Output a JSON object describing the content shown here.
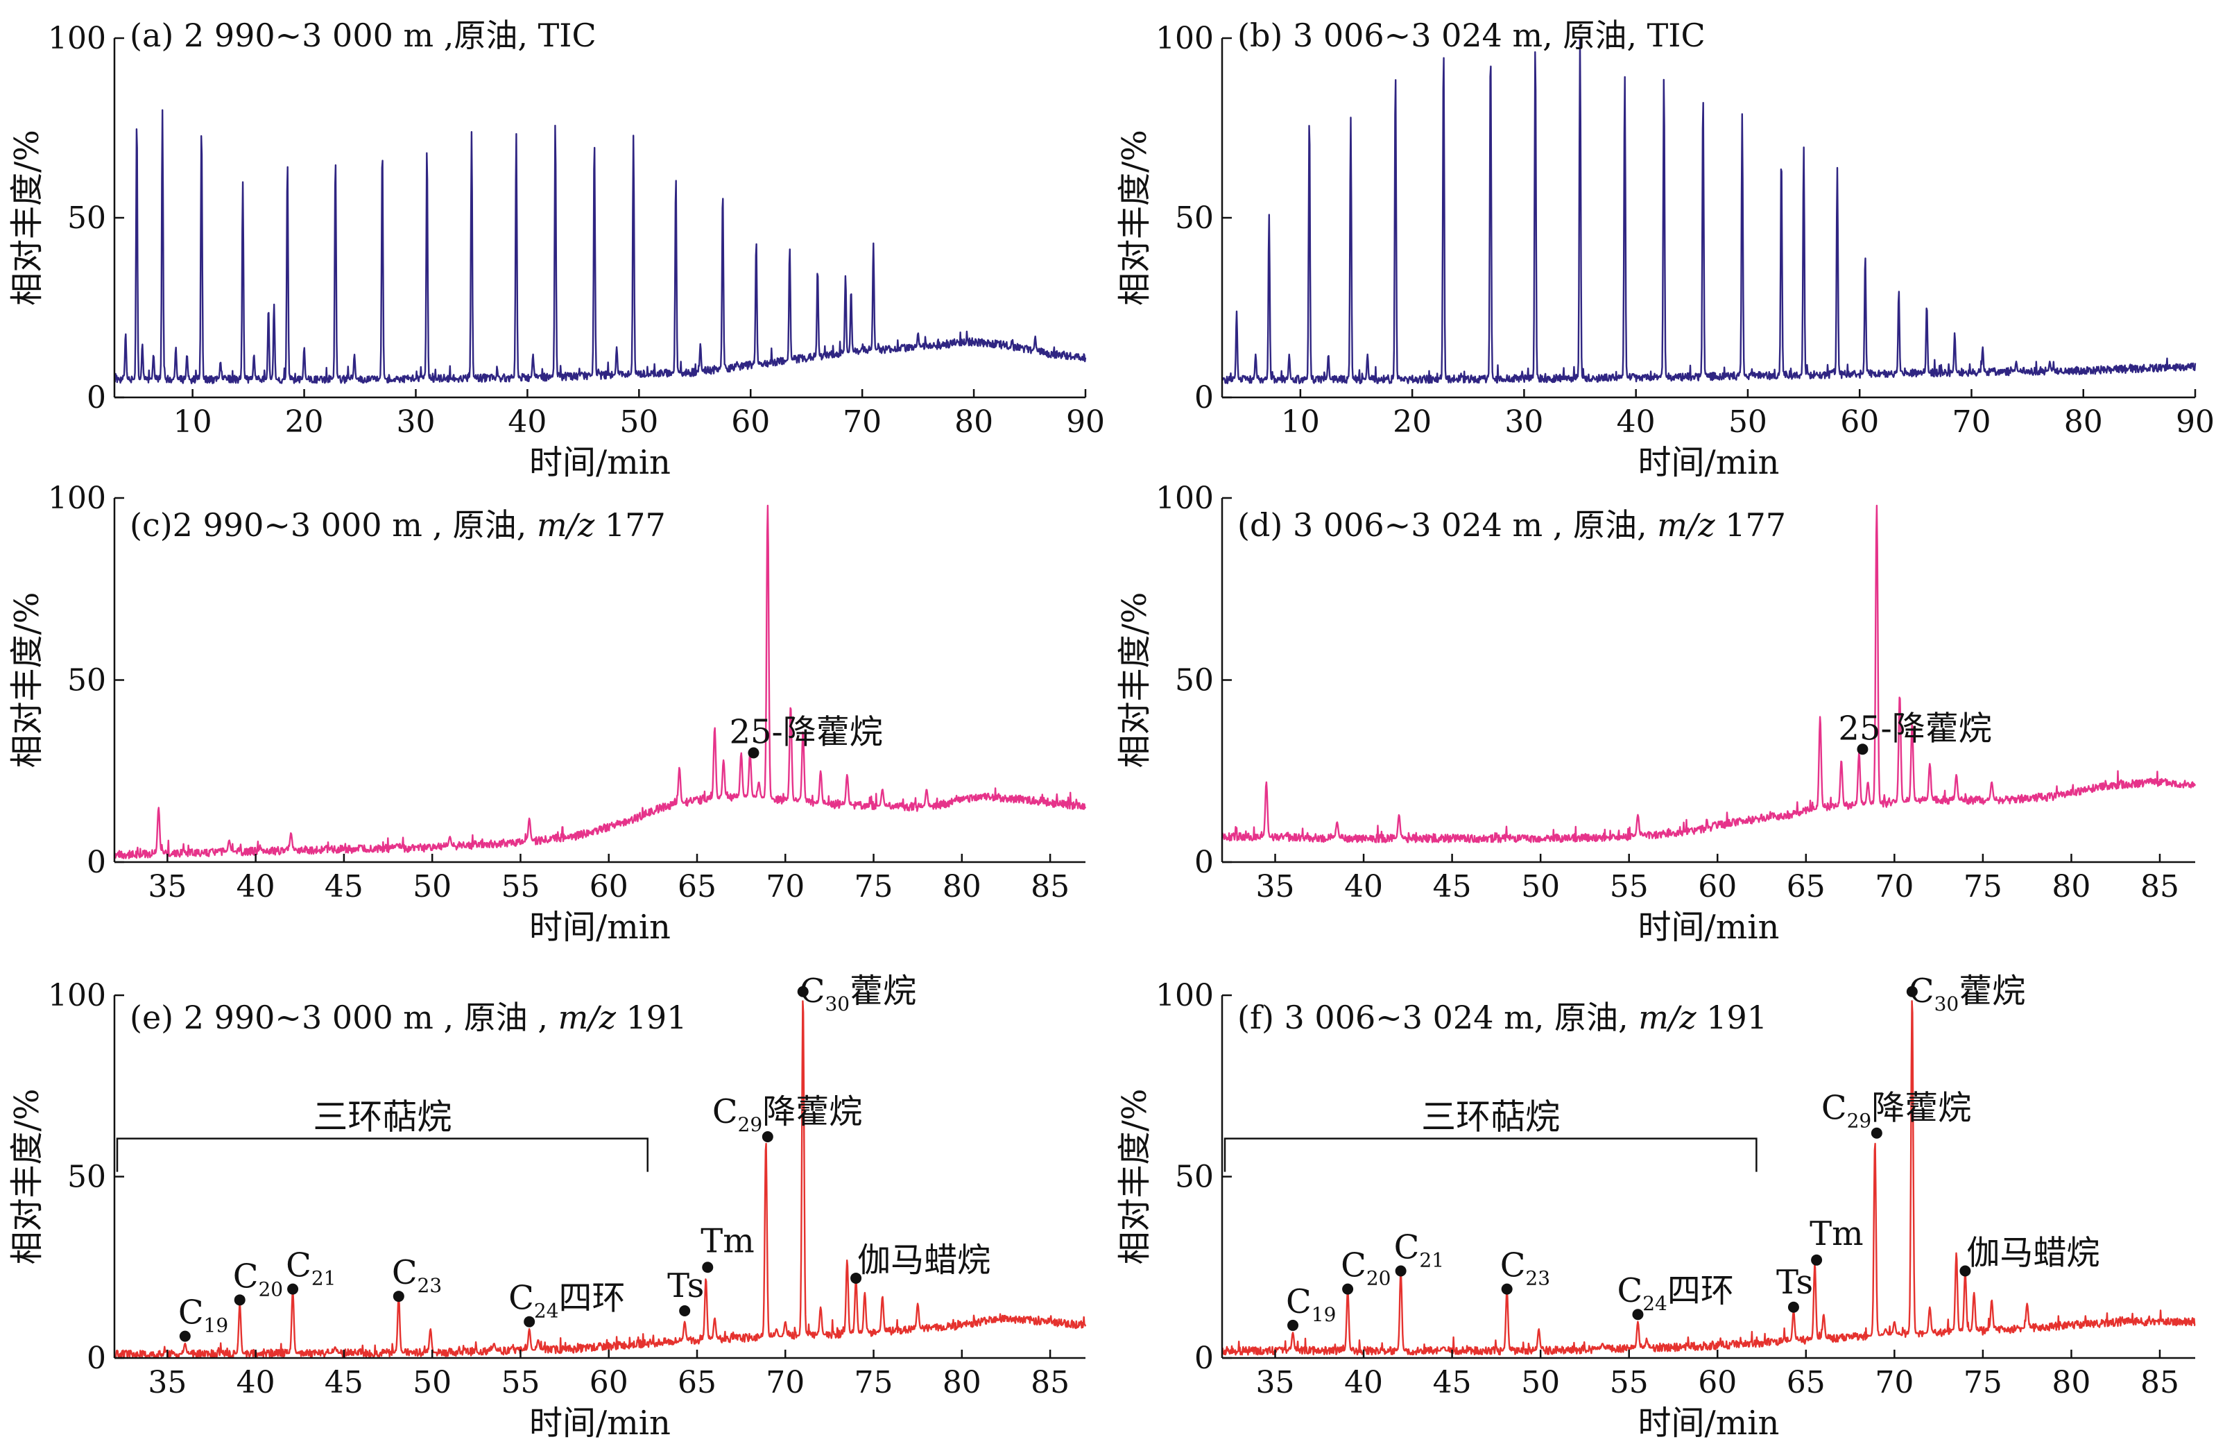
{
  "x_axis_label": "时间/min",
  "y_axis_label": "相对丰度/%",
  "chart_data": [
    {
      "id": "a",
      "type": "line",
      "color": "#2f2582",
      "title": "(a) 2 990~3 000 m ,原油, TIC",
      "xlabel": "时间/min",
      "ylabel": "相对丰度/%",
      "xlim": [
        3,
        90
      ],
      "ylim": [
        0,
        100
      ],
      "xticks": [
        10,
        20,
        30,
        40,
        50,
        60,
        70,
        80,
        90
      ],
      "yticks": [
        0,
        50,
        100
      ],
      "baseline": [
        [
          3,
          5
        ],
        [
          20,
          5
        ],
        [
          40,
          5.5
        ],
        [
          55,
          7
        ],
        [
          60,
          9
        ],
        [
          65,
          11
        ],
        [
          70,
          13
        ],
        [
          75,
          14
        ],
        [
          80,
          15.5
        ],
        [
          83,
          14.5
        ],
        [
          87,
          12
        ],
        [
          90,
          11
        ]
      ],
      "peaks": [
        [
          4.0,
          18
        ],
        [
          5.0,
          78
        ],
        [
          5.5,
          15
        ],
        [
          6.5,
          12
        ],
        [
          7.3,
          80
        ],
        [
          8.5,
          14
        ],
        [
          9.5,
          12
        ],
        [
          10.8,
          76
        ],
        [
          12.5,
          10
        ],
        [
          14.5,
          60
        ],
        [
          15.5,
          12
        ],
        [
          16.8,
          25
        ],
        [
          17.3,
          26
        ],
        [
          18.5,
          66
        ],
        [
          20.0,
          14
        ],
        [
          22.8,
          67
        ],
        [
          24.5,
          12
        ],
        [
          27.0,
          70
        ],
        [
          31.0,
          70
        ],
        [
          35.0,
          74
        ],
        [
          39.0,
          74
        ],
        [
          40.5,
          12
        ],
        [
          42.5,
          77
        ],
        [
          46.0,
          72
        ],
        [
          48.0,
          14
        ],
        [
          49.5,
          73
        ],
        [
          53.3,
          62
        ],
        [
          55.5,
          15
        ],
        [
          57.5,
          58
        ],
        [
          60.5,
          44
        ],
        [
          63.5,
          42
        ],
        [
          66.0,
          36
        ],
        [
          68.5,
          34
        ],
        [
          69.0,
          30
        ],
        [
          71.0,
          43
        ],
        [
          75.0,
          18
        ],
        [
          85.5,
          17
        ]
      ]
    },
    {
      "id": "b",
      "type": "line",
      "color": "#2f2582",
      "title": "(b) 3 006~3 024 m, 原油, TIC",
      "xlabel": "时间/min",
      "ylabel": "相对丰度/%",
      "xlim": [
        3,
        90
      ],
      "ylim": [
        0,
        100
      ],
      "xticks": [
        10,
        20,
        30,
        40,
        50,
        60,
        70,
        80,
        90
      ],
      "yticks": [
        0,
        50,
        100
      ],
      "baseline": [
        [
          3,
          5
        ],
        [
          20,
          5
        ],
        [
          40,
          5.5
        ],
        [
          60,
          6.5
        ],
        [
          70,
          7
        ],
        [
          80,
          7.5
        ],
        [
          90,
          8.5
        ]
      ],
      "peaks": [
        [
          4.3,
          24
        ],
        [
          6.0,
          12
        ],
        [
          7.2,
          51
        ],
        [
          9.0,
          12
        ],
        [
          10.8,
          79
        ],
        [
          12.5,
          12
        ],
        [
          14.5,
          78
        ],
        [
          16.0,
          12
        ],
        [
          18.5,
          91
        ],
        [
          22.8,
          98
        ],
        [
          27.0,
          98
        ],
        [
          31.0,
          99
        ],
        [
          35.0,
          100
        ],
        [
          39.0,
          90
        ],
        [
          42.5,
          90
        ],
        [
          46.0,
          85
        ],
        [
          49.5,
          79
        ],
        [
          53.0,
          68
        ],
        [
          55.0,
          70
        ],
        [
          58.0,
          64
        ],
        [
          60.5,
          40
        ],
        [
          63.5,
          30
        ],
        [
          66.0,
          26
        ],
        [
          68.5,
          18
        ],
        [
          71.0,
          14
        ],
        [
          74.0,
          10
        ],
        [
          77.0,
          10
        ]
      ]
    },
    {
      "id": "c",
      "type": "line",
      "color": "#e6338a",
      "title": "(c)2 990~3 000 m , 原油, m/z 177",
      "title_parts": [
        "(c)2 990~3 000 m , 原油, ",
        "m/z",
        " 177"
      ],
      "xlabel": "时间/min",
      "ylabel": "相对丰度/%",
      "xlim": [
        32,
        87
      ],
      "ylim": [
        0,
        100
      ],
      "xticks": [
        35,
        40,
        45,
        50,
        55,
        60,
        65,
        70,
        75,
        80,
        85
      ],
      "yticks": [
        0,
        50,
        100
      ],
      "baseline": [
        [
          32,
          2
        ],
        [
          40,
          3
        ],
        [
          50,
          4
        ],
        [
          55,
          5.5
        ],
        [
          58,
          7
        ],
        [
          61,
          11
        ],
        [
          63,
          15
        ],
        [
          65,
          17
        ],
        [
          68,
          18
        ],
        [
          72,
          16
        ],
        [
          78,
          15
        ],
        [
          81,
          18
        ],
        [
          84,
          17
        ],
        [
          87,
          15
        ]
      ],
      "peaks": [
        [
          34.5,
          15
        ],
        [
          38.5,
          6
        ],
        [
          42.0,
          8
        ],
        [
          48.0,
          5
        ],
        [
          51.0,
          7
        ],
        [
          55.5,
          12
        ],
        [
          64.0,
          26
        ],
        [
          66.0,
          37
        ],
        [
          66.5,
          28
        ],
        [
          67.5,
          30
        ],
        [
          68.0,
          30
        ],
        [
          68.5,
          22
        ],
        [
          69.0,
          98
        ],
        [
          70.3,
          43
        ],
        [
          71.0,
          36
        ],
        [
          72.0,
          25
        ],
        [
          73.5,
          24
        ],
        [
          75.5,
          20
        ],
        [
          78.0,
          20
        ]
      ],
      "markers": [
        {
          "x": 68.2,
          "y": 30,
          "label": "25-降藿烷"
        }
      ]
    },
    {
      "id": "d",
      "type": "line",
      "color": "#e6338a",
      "title": "(d) 3 006~3 024 m , 原油, m/z 177",
      "title_parts": [
        "(d) 3 006~3 024 m , 原油, ",
        "m/z",
        " 177"
      ],
      "xlabel": "时间/min",
      "ylabel": "相对丰度/%",
      "xlim": [
        32,
        87
      ],
      "ylim": [
        0,
        100
      ],
      "xticks": [
        35,
        40,
        45,
        50,
        55,
        60,
        65,
        70,
        75,
        80,
        85
      ],
      "yticks": [
        0,
        50,
        100
      ],
      "baseline": [
        [
          32,
          7
        ],
        [
          40,
          6.5
        ],
        [
          50,
          6.5
        ],
        [
          55,
          7
        ],
        [
          58,
          8
        ],
        [
          61,
          11
        ],
        [
          64,
          13
        ],
        [
          66,
          15
        ],
        [
          69,
          16
        ],
        [
          72,
          17
        ],
        [
          76,
          17
        ],
        [
          79,
          18
        ],
        [
          82,
          21
        ],
        [
          85,
          22
        ],
        [
          87,
          21
        ]
      ],
      "peaks": [
        [
          34.5,
          22
        ],
        [
          38.5,
          11
        ],
        [
          42.0,
          13
        ],
        [
          55.5,
          13
        ],
        [
          65.8,
          40
        ],
        [
          67.0,
          28
        ],
        [
          68.0,
          30
        ],
        [
          68.5,
          22
        ],
        [
          69.0,
          98
        ],
        [
          70.3,
          46
        ],
        [
          71.0,
          38
        ],
        [
          72.0,
          27
        ],
        [
          73.5,
          24
        ],
        [
          75.5,
          22
        ]
      ],
      "markers": [
        {
          "x": 68.2,
          "y": 31,
          "label": "25-降藿烷"
        }
      ]
    },
    {
      "id": "e",
      "type": "line",
      "color": "#e5322e",
      "title": "(e) 2 990~3 000 m , 原油 , m/z 191",
      "title_parts": [
        "(e) 2 990~3 000 m , 原油 , ",
        "m/z",
        " 191"
      ],
      "xlabel": "时间/min",
      "ylabel": "相对丰度/%",
      "xlim": [
        32,
        87
      ],
      "ylim": [
        0,
        100
      ],
      "xticks": [
        35,
        40,
        45,
        50,
        55,
        60,
        65,
        70,
        75,
        80,
        85
      ],
      "yticks": [
        0,
        50,
        100
      ],
      "baseline": [
        [
          32,
          1
        ],
        [
          50,
          1.5
        ],
        [
          58,
          2.5
        ],
        [
          62,
          4
        ],
        [
          65,
          5
        ],
        [
          70,
          6
        ],
        [
          75,
          7
        ],
        [
          80,
          9
        ],
        [
          82,
          11
        ],
        [
          85,
          10
        ],
        [
          87,
          9
        ]
      ],
      "peaks": [
        [
          36.0,
          4
        ],
        [
          39.1,
          15
        ],
        [
          42.1,
          19
        ],
        [
          44.5,
          3
        ],
        [
          48.1,
          17
        ],
        [
          49.9,
          8
        ],
        [
          53.5,
          4
        ],
        [
          55.5,
          8
        ],
        [
          56.0,
          5
        ],
        [
          64.3,
          10
        ],
        [
          65.5,
          22
        ],
        [
          66.0,
          11
        ],
        [
          68.9,
          60
        ],
        [
          69.5,
          8
        ],
        [
          70.0,
          10
        ],
        [
          71.0,
          100
        ],
        [
          72.0,
          14
        ],
        [
          73.5,
          27
        ],
        [
          74.0,
          22
        ],
        [
          74.5,
          18
        ],
        [
          75.5,
          17
        ],
        [
          77.5,
          15
        ]
      ],
      "markers": [
        {
          "x": 36.0,
          "y": 6,
          "label": "C",
          "sub": "19"
        },
        {
          "x": 39.1,
          "y": 16,
          "label": "C",
          "sub": "20"
        },
        {
          "x": 42.1,
          "y": 19,
          "label": "C",
          "sub": "21"
        },
        {
          "x": 48.1,
          "y": 17,
          "label": "C",
          "sub": "23"
        },
        {
          "x": 55.5,
          "y": 10,
          "label": "C",
          "sub": "24",
          "suffix": "四环"
        },
        {
          "x": 64.3,
          "y": 13,
          "label": "Ts"
        },
        {
          "x": 65.6,
          "y": 25,
          "label": "Tm"
        },
        {
          "x": 69.0,
          "y": 61,
          "label": "C",
          "sub": "29",
          "suffix": "降藿烷"
        },
        {
          "x": 71.0,
          "y": 101,
          "label": "C",
          "sub": "30",
          "suffix": "藿烷"
        },
        {
          "x": 74.0,
          "y": 22,
          "label": "伽马蜡烷"
        }
      ],
      "bracket": {
        "label": "三环萜烷",
        "x1": 32.0,
        "x2": 62.2,
        "y": 60.5
      }
    },
    {
      "id": "f",
      "type": "line",
      "color": "#e5322e",
      "title": "(f) 3 006~3 024 m, 原油, m/z 191",
      "title_parts": [
        "(f) 3 006~3 024 m, 原油, ",
        "m/z",
        " 191"
      ],
      "xlabel": "时间/min",
      "ylabel": "相对丰度/%",
      "xlim": [
        32,
        87
      ],
      "ylim": [
        0,
        100
      ],
      "xticks": [
        35,
        40,
        45,
        50,
        55,
        60,
        65,
        70,
        75,
        80,
        85
      ],
      "yticks": [
        0,
        50,
        100
      ],
      "baseline": [
        [
          32,
          2
        ],
        [
          50,
          2
        ],
        [
          58,
          3
        ],
        [
          62,
          4
        ],
        [
          65,
          5
        ],
        [
          70,
          6.5
        ],
        [
          75,
          7.5
        ],
        [
          80,
          9
        ],
        [
          83,
          10
        ],
        [
          87,
          10
        ]
      ],
      "peaks": [
        [
          36.0,
          7
        ],
        [
          39.1,
          19
        ],
        [
          42.1,
          24
        ],
        [
          44.5,
          3
        ],
        [
          48.1,
          19
        ],
        [
          49.9,
          8
        ],
        [
          53.5,
          4
        ],
        [
          55.5,
          10
        ],
        [
          56.0,
          5
        ],
        [
          64.3,
          13
        ],
        [
          65.5,
          26
        ],
        [
          66.0,
          12
        ],
        [
          68.9,
          60
        ],
        [
          69.5,
          8
        ],
        [
          70.0,
          10
        ],
        [
          71.0,
          100
        ],
        [
          72.0,
          14
        ],
        [
          73.5,
          29
        ],
        [
          74.0,
          24
        ],
        [
          74.5,
          18
        ],
        [
          75.5,
          16
        ],
        [
          77.5,
          15
        ]
      ],
      "markers": [
        {
          "x": 36.0,
          "y": 9,
          "label": "C",
          "sub": "19"
        },
        {
          "x": 39.1,
          "y": 19,
          "label": "C",
          "sub": "20"
        },
        {
          "x": 42.1,
          "y": 24,
          "label": "C",
          "sub": "21"
        },
        {
          "x": 48.1,
          "y": 19,
          "label": "C",
          "sub": "23"
        },
        {
          "x": 55.5,
          "y": 12,
          "label": "C",
          "sub": "24",
          "suffix": "四环"
        },
        {
          "x": 64.3,
          "y": 14,
          "label": "Ts"
        },
        {
          "x": 65.6,
          "y": 27,
          "label": "Tm"
        },
        {
          "x": 69.0,
          "y": 62,
          "label": "C",
          "sub": "29",
          "suffix": "降藿烷"
        },
        {
          "x": 71.0,
          "y": 101,
          "label": "C",
          "sub": "30",
          "suffix": "藿烷"
        },
        {
          "x": 74.0,
          "y": 24,
          "label": "伽马蜡烷"
        }
      ],
      "bracket": {
        "label": "三环萜烷",
        "x1": 32.0,
        "x2": 62.2,
        "y": 60.5
      }
    }
  ]
}
